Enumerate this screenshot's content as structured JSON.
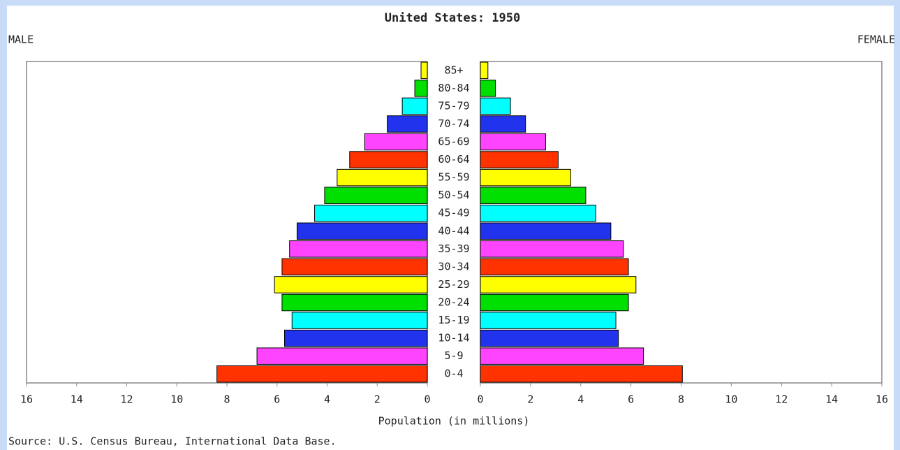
{
  "chart_data": {
    "type": "pyramid",
    "title": "United States: 1950",
    "xlabel": "Population (in millions)",
    "source": "Source: U.S. Census Bureau, International Data Base.",
    "categories": [
      "0-4",
      "5-9",
      "10-14",
      "15-19",
      "20-24",
      "25-29",
      "30-34",
      "35-39",
      "40-44",
      "45-49",
      "50-54",
      "55-59",
      "60-64",
      "65-69",
      "70-74",
      "75-79",
      "80-84",
      "85+"
    ],
    "colors": [
      "#ff3300",
      "#ff44ff",
      "#2233ee",
      "#00ffff",
      "#00e000",
      "#ffff00",
      "#ff3300",
      "#ff44ff",
      "#2233ee",
      "#00ffff",
      "#00e000",
      "#ffff00",
      "#ff3300",
      "#ff44ff",
      "#2233ee",
      "#00ffff",
      "#00e000",
      "#ffff00"
    ],
    "series": [
      {
        "name": "MALE",
        "values": [
          8.4,
          6.8,
          5.7,
          5.4,
          5.8,
          6.1,
          5.8,
          5.5,
          5.2,
          4.5,
          4.1,
          3.6,
          3.1,
          2.5,
          1.6,
          1.0,
          0.5,
          0.25
        ]
      },
      {
        "name": "FEMALE",
        "values": [
          8.05,
          6.5,
          5.5,
          5.4,
          5.9,
          6.2,
          5.9,
          5.7,
          5.2,
          4.6,
          4.2,
          3.6,
          3.1,
          2.6,
          1.8,
          1.2,
          0.6,
          0.3
        ]
      }
    ],
    "xlim": [
      0,
      16
    ],
    "xticks": [
      0,
      2,
      4,
      6,
      8,
      10,
      12,
      14,
      16
    ]
  }
}
